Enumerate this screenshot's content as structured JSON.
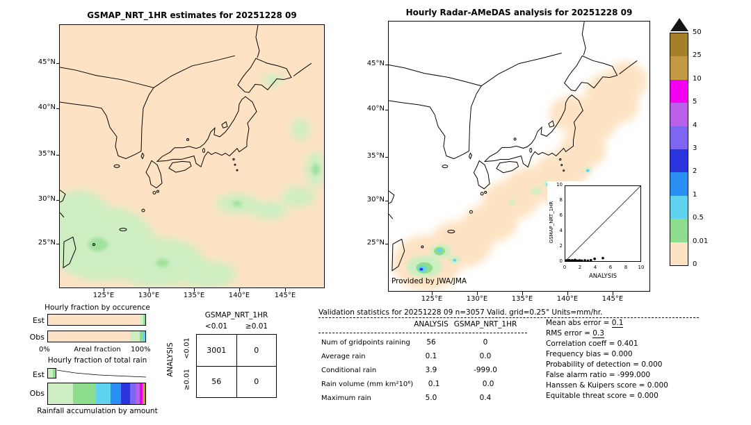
{
  "colors": {
    "peach": "#fde3c3",
    "green_light": "#cdeec2",
    "green": "#8edc8e",
    "cyan": "#5fd2f0",
    "blue_lt": "#2a8ff2",
    "blue": "#2a35dd",
    "slate": "#7e66f2",
    "orchid": "#b95fe8",
    "magenta": "#f300f3",
    "tan": "#c29a45",
    "brown": "#a5802a",
    "over": "#151515"
  },
  "header": {
    "left_title": "GSMAP_NRT_1HR estimates for 20251228 09",
    "right_title": "Hourly Radar-AMeDAS analysis for 20251228 09"
  },
  "maps": {
    "lat_labels": [
      "45°N",
      "40°N",
      "35°N",
      "30°N",
      "25°N"
    ],
    "lon_labels": [
      "125°E",
      "130°E",
      "135°E",
      "140°E",
      "145°E"
    ],
    "provided_by": "Provided by JWA/JMA"
  },
  "colorbar": {
    "units": "mm/hr",
    "labels": [
      "50",
      "25",
      "10",
      "5",
      "4",
      "3",
      "2",
      "1",
      "0.5",
      "0.01",
      "0"
    ],
    "bands": [
      "brown",
      "tan",
      "magenta",
      "orchid",
      "slate",
      "blue",
      "blue_lt",
      "cyan",
      "green",
      "peach"
    ]
  },
  "inset": {
    "xlabel": "ANALYSIS",
    "ylabel": "GSMAP_NRT_1HR"
  },
  "fractions": {
    "occurrence_title": "Hourly fraction by occurence",
    "totalrain_title": "Hourly fraction of total rain",
    "accum_title": "Rainfall accumulation by amount",
    "axis_left": "0%",
    "axis_center": "Areal fraction",
    "axis_right": "100%",
    "est_label": "Est",
    "obs_label": "Obs",
    "est_occurrence": [
      {
        "color": "peach",
        "pct": 95
      },
      {
        "color": "green_light",
        "pct": 3
      },
      {
        "color": "green",
        "pct": 2
      }
    ],
    "obs_occurrence": [
      {
        "color": "peach",
        "pct": 84
      },
      {
        "color": "green_light",
        "pct": 10
      },
      {
        "color": "green",
        "pct": 4
      },
      {
        "color": "cyan",
        "pct": 2
      }
    ],
    "est_totalrain": [
      {
        "color": "green_light",
        "pct": 65
      },
      {
        "color": "green",
        "pct": 35
      }
    ],
    "obs_accum": [
      {
        "color": "green_light",
        "pct": 26
      },
      {
        "color": "green",
        "pct": 23
      },
      {
        "color": "cyan",
        "pct": 15
      },
      {
        "color": "blue_lt",
        "pct": 11
      },
      {
        "color": "blue",
        "pct": 9
      },
      {
        "color": "slate",
        "pct": 6
      },
      {
        "color": "orchid",
        "pct": 4
      },
      {
        "color": "magenta",
        "pct": 3
      },
      {
        "color": "tan",
        "pct": 2
      },
      {
        "color": "brown",
        "pct": 1
      }
    ]
  },
  "contingency": {
    "title": "GSMAP_NRT_1HR",
    "col_labels": [
      "<0.01",
      "≥0.01"
    ],
    "row_axis": "ANALYSIS",
    "row_labels": [
      "<0.01",
      "≥0.01"
    ],
    "cells": [
      [
        "3001",
        "0"
      ],
      [
        "56",
        "0"
      ]
    ]
  },
  "validation": {
    "title": "Validation statistics for 20251228 09  n=3057 Valid. grid=0.25° Units=mm/hr.",
    "col_headers": [
      "ANALYSIS",
      "GSMAP_NRT_1HR"
    ],
    "rows": [
      {
        "label": "Num of gridpoints raining",
        "values": [
          "56",
          "0"
        ]
      },
      {
        "label": "Average rain",
        "values": [
          "0.1",
          "0.0"
        ]
      },
      {
        "label": "Conditional rain",
        "values": [
          "3.9",
          "-999.0"
        ]
      },
      {
        "label": "Rain volume (mm km²10⁶)",
        "values": [
          "0.1",
          "0.0"
        ]
      },
      {
        "label": "Maximum rain",
        "values": [
          "5.0",
          "0.4"
        ]
      }
    ],
    "right_stats": [
      {
        "label": "Mean abs error",
        "value": "0.1",
        "underline": true
      },
      {
        "label": "RMS error",
        "value": "0.3",
        "underline": true
      },
      {
        "label": "Correlation coeff",
        "value": "0.401"
      },
      {
        "label": "Frequency bias",
        "value": "0.000"
      },
      {
        "label": "Probability of detection",
        "value": "0.000"
      },
      {
        "label": "False alarm ratio",
        "value": "-999.000"
      },
      {
        "label": "Hanssen & Kuipers score",
        "value": "0.000"
      },
      {
        "label": "Equitable threat score",
        "value": "0.000"
      }
    ]
  },
  "chart_data": [
    {
      "type": "heatmap",
      "id": "gsmap-map",
      "title": "GSMAP_NRT_1HR estimates for 20251228 09",
      "x_ticks": [
        "125°E",
        "130°E",
        "135°E",
        "140°E",
        "145°E"
      ],
      "y_ticks": [
        "45°N",
        "40°N",
        "35°N",
        "30°N",
        "25°N"
      ],
      "units": "mm/hr",
      "scale_boundaries": [
        0,
        0.01,
        0.5,
        1,
        2,
        3,
        4,
        5,
        10,
        25,
        50
      ],
      "summary": "Trace precipitation (0-0.01 mm/hr, peach) over the whole domain; 0.01-0.5 mm/hr (light green) areas southwest of Kyushu toward Taiwan and scattered patches over the Pacific near 27-32°N, 132-146°E."
    },
    {
      "type": "heatmap",
      "id": "radar-map",
      "title": "Hourly Radar-AMeDAS analysis for 20251228 09",
      "x_ticks": [
        "125°E",
        "130°E",
        "135°E",
        "140°E",
        "145°E"
      ],
      "y_ticks": [
        "45°N",
        "40°N",
        "35°N",
        "30°N",
        "25°N"
      ],
      "units": "mm/hr",
      "scale_boundaries": [
        0,
        0.01,
        0.5,
        1,
        2,
        3,
        4,
        5,
        10,
        25,
        50
      ],
      "summary": "Radar coverage band (0-0.01 mm/hr) along the archipelago from Okinawa to Hokkaido; rain cells 0.01-1 mm/hr around Okinawa with embedded maxima near 2-5 mm/hr, and small cells south of Shikoku."
    },
    {
      "type": "scatter",
      "id": "inset-scatter",
      "xlabel": "ANALYSIS",
      "ylabel": "GSMAP_NRT_1HR",
      "xlim": [
        0,
        10
      ],
      "ylim": [
        0,
        10
      ],
      "x_ticks": [
        "0",
        "2",
        "4",
        "6",
        "8",
        "10"
      ],
      "y_ticks": [
        "0",
        "2",
        "4",
        "6",
        "8",
        "10"
      ],
      "diagonal_line": true,
      "points": [
        [
          0.05,
          0.05
        ],
        [
          0.2,
          0.1
        ],
        [
          0.35,
          0.05
        ],
        [
          0.5,
          0.12
        ],
        [
          0.7,
          0.05
        ],
        [
          0.9,
          0.1
        ],
        [
          1.1,
          0.05
        ],
        [
          1.3,
          0.15
        ],
        [
          1.6,
          0.05
        ],
        [
          1.9,
          0.1
        ],
        [
          2.2,
          0.05
        ],
        [
          2.6,
          0.1
        ],
        [
          3.0,
          0.05
        ],
        [
          3.4,
          0.12
        ],
        [
          3.9,
          0.3
        ],
        [
          5.0,
          0.4
        ]
      ]
    },
    {
      "type": "table",
      "id": "contingency-table",
      "title": "GSMAP_NRT_1HR vs ANALYSIS contingency (gridpoints)",
      "columns": [
        "GSMAP<0.01",
        "GSMAP≥0.01"
      ],
      "rows": [
        {
          "label": "ANALYSIS<0.01",
          "values": [
            3001,
            0
          ]
        },
        {
          "label": "ANALYSIS≥0.01",
          "values": [
            56,
            0
          ]
        }
      ]
    },
    {
      "type": "bar",
      "id": "rainfall-accumulation-obs",
      "title": "Rainfall accumulation by amount (Obs, fraction of total)",
      "categories": [
        "0.01-0.5",
        "0.5-1",
        "1-2",
        "2-3",
        "3-4",
        "4-5",
        "5-10",
        "10-25",
        "25-50",
        "≥50"
      ],
      "values_pct": [
        26,
        23,
        15,
        11,
        9,
        6,
        4,
        3,
        2,
        1
      ],
      "note": "segment widths estimated from figure"
    }
  ]
}
